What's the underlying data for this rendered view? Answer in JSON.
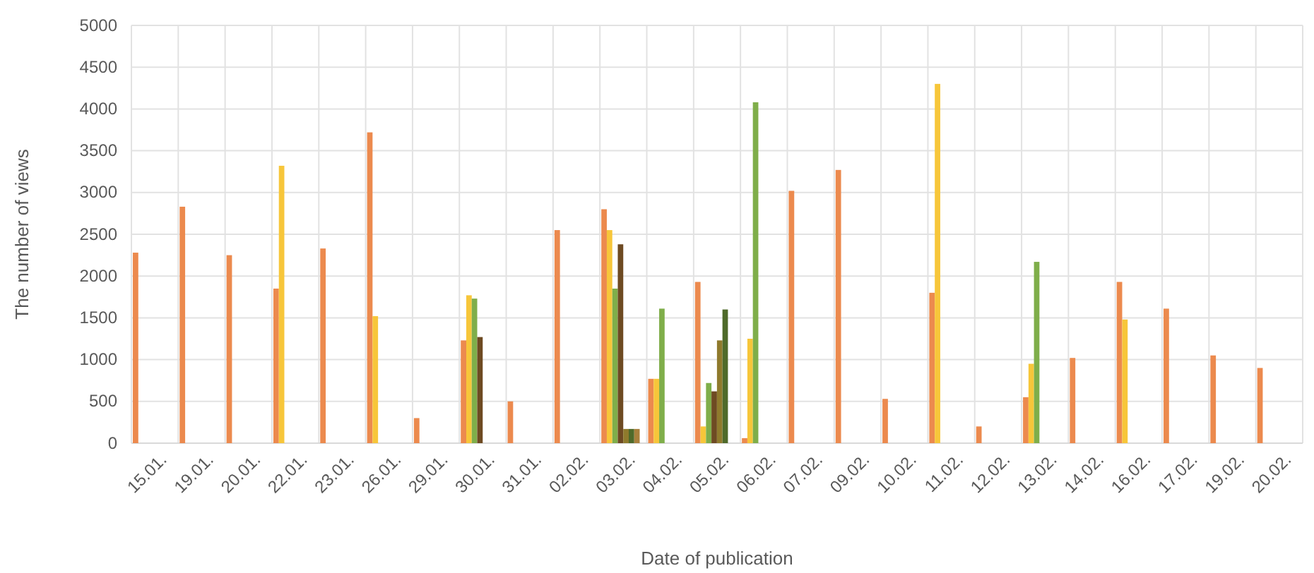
{
  "chart_data": {
    "type": "bar",
    "xlabel": "Date of publication",
    "ylabel": "The number of views",
    "categories": [
      "15.01.",
      "19.01.",
      "20.01.",
      "22.01.",
      "23.01.",
      "26.01.",
      "29.01.",
      "30.01.",
      "31.01.",
      "02.02.",
      "03.02.",
      "04.02.",
      "05.02.",
      "06.02.",
      "07.02.",
      "09.02.",
      "10.02.",
      "11.02.",
      "12.02.",
      "13.02.",
      "14.02.",
      "16.02.",
      "17.02.",
      "19.02.",
      "20.02."
    ],
    "series": [
      {
        "color": "#ec8a4e",
        "values": [
          2280,
          2830,
          2250,
          1850,
          2330,
          3720,
          300,
          1230,
          500,
          2550,
          2800,
          770,
          1930,
          60,
          3020,
          3270,
          530,
          1800,
          200,
          550,
          1020,
          1930,
          1610,
          1050,
          900
        ]
      },
      {
        "color": "#f7c63a",
        "values": [
          null,
          null,
          null,
          3320,
          null,
          1520,
          null,
          1770,
          null,
          null,
          2550,
          770,
          200,
          1250,
          null,
          null,
          null,
          4300,
          null,
          950,
          null,
          1480,
          null,
          null,
          null
        ]
      },
      {
        "color": "#7fae4a",
        "values": [
          null,
          null,
          null,
          null,
          null,
          null,
          null,
          1730,
          null,
          null,
          1850,
          1610,
          720,
          4080,
          null,
          null,
          null,
          null,
          null,
          2170,
          null,
          null,
          null,
          null,
          null
        ]
      },
      {
        "color": "#6e4a22",
        "values": [
          null,
          null,
          null,
          null,
          null,
          null,
          null,
          1270,
          null,
          null,
          2380,
          null,
          620,
          null,
          null,
          null,
          null,
          null,
          null,
          null,
          null,
          null,
          null,
          null,
          null
        ]
      },
      {
        "color": "#8f7a2c",
        "values": [
          null,
          null,
          null,
          null,
          null,
          null,
          null,
          null,
          null,
          null,
          170,
          null,
          1230,
          null,
          null,
          null,
          null,
          null,
          null,
          null,
          null,
          null,
          null,
          null,
          null
        ]
      },
      {
        "color": "#4f6a2a",
        "values": [
          null,
          null,
          null,
          null,
          null,
          null,
          null,
          null,
          null,
          null,
          170,
          null,
          1600,
          null,
          null,
          null,
          null,
          null,
          null,
          null,
          null,
          null,
          null,
          null,
          null
        ]
      },
      {
        "color": "#a8803c",
        "values": [
          null,
          null,
          null,
          null,
          null,
          null,
          null,
          null,
          null,
          null,
          170,
          null,
          null,
          null,
          null,
          null,
          null,
          null,
          null,
          null,
          null,
          null,
          null,
          null,
          null
        ]
      }
    ],
    "ylim": [
      0,
      5000
    ],
    "yticks": [
      0,
      500,
      1000,
      1500,
      2000,
      2500,
      3000,
      3500,
      4000,
      4500,
      5000
    ],
    "grid": true
  }
}
